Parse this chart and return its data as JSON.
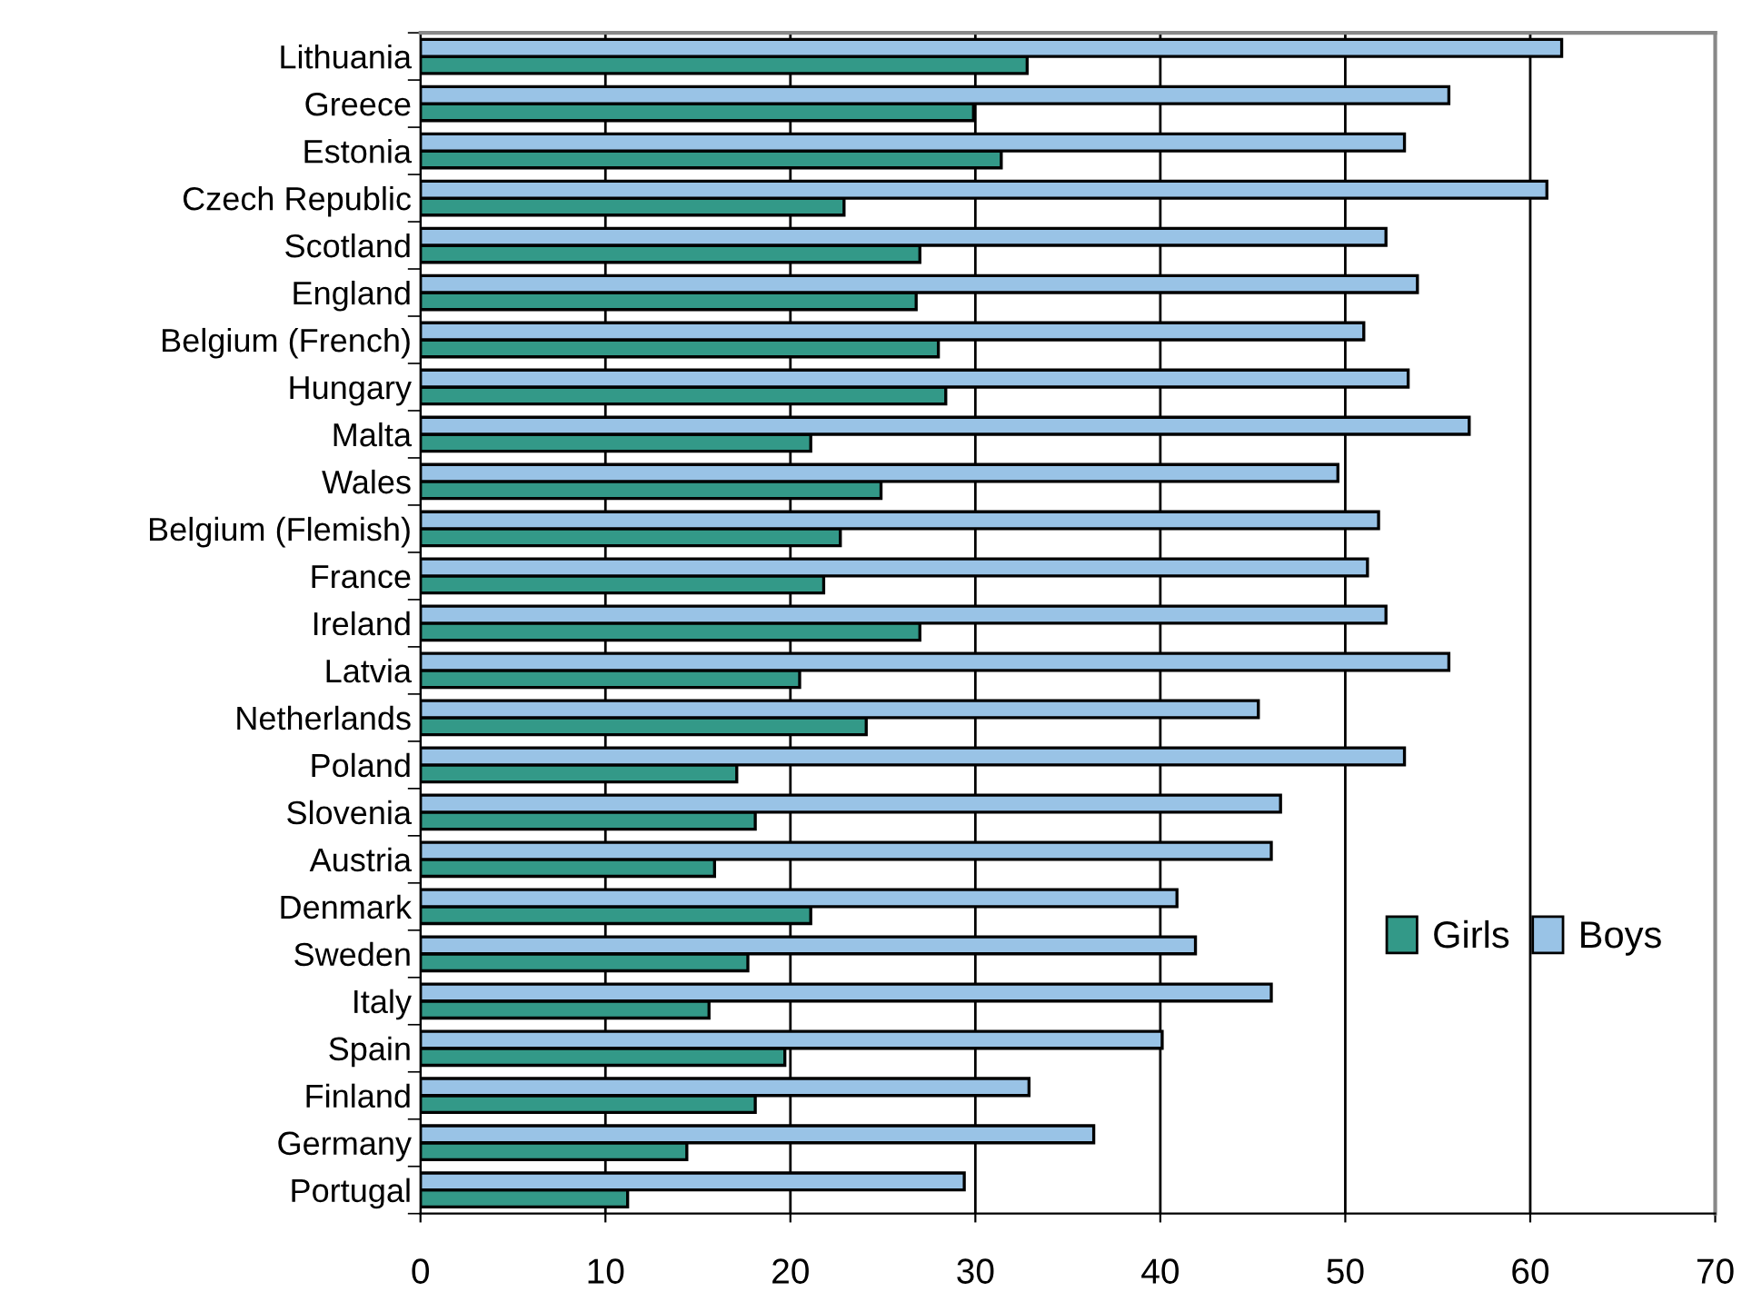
{
  "chart_data": {
    "type": "bar",
    "orientation": "horizontal",
    "categories": [
      "Lithuania",
      "Greece",
      "Estonia",
      "Czech Republic",
      "Scotland",
      "England",
      "Belgium (French)",
      "Hungary",
      "Malta",
      "Wales",
      "Belgium (Flemish)",
      "France",
      "Ireland",
      "Latvia",
      "Netherlands",
      "Poland",
      "Slovenia",
      "Austria",
      "Denmark",
      "Sweden",
      "Italy",
      "Spain",
      "Finland",
      "Germany",
      "Portugal"
    ],
    "series": [
      {
        "name": "Girls",
        "color": "#339988",
        "values": [
          32.8,
          29.9,
          31.4,
          22.9,
          27.0,
          26.8,
          28.0,
          28.4,
          21.1,
          24.9,
          22.7,
          21.8,
          27.0,
          20.5,
          24.1,
          17.1,
          18.1,
          15.9,
          21.1,
          17.7,
          15.6,
          19.7,
          18.1,
          14.4,
          11.2
        ]
      },
      {
        "name": "Boys",
        "color": "#99c3e6",
        "values": [
          61.7,
          55.6,
          53.2,
          60.9,
          52.2,
          53.9,
          51.0,
          53.4,
          56.7,
          49.6,
          51.8,
          51.2,
          52.2,
          55.6,
          45.3,
          53.2,
          46.5,
          46.0,
          40.9,
          41.9,
          46.0,
          40.1,
          32.9,
          36.4,
          29.4
        ]
      }
    ],
    "xlim": [
      0,
      70
    ],
    "xticks": [
      0,
      10,
      20,
      30,
      40,
      50,
      60,
      70
    ],
    "grid": "x",
    "legend": "right"
  }
}
